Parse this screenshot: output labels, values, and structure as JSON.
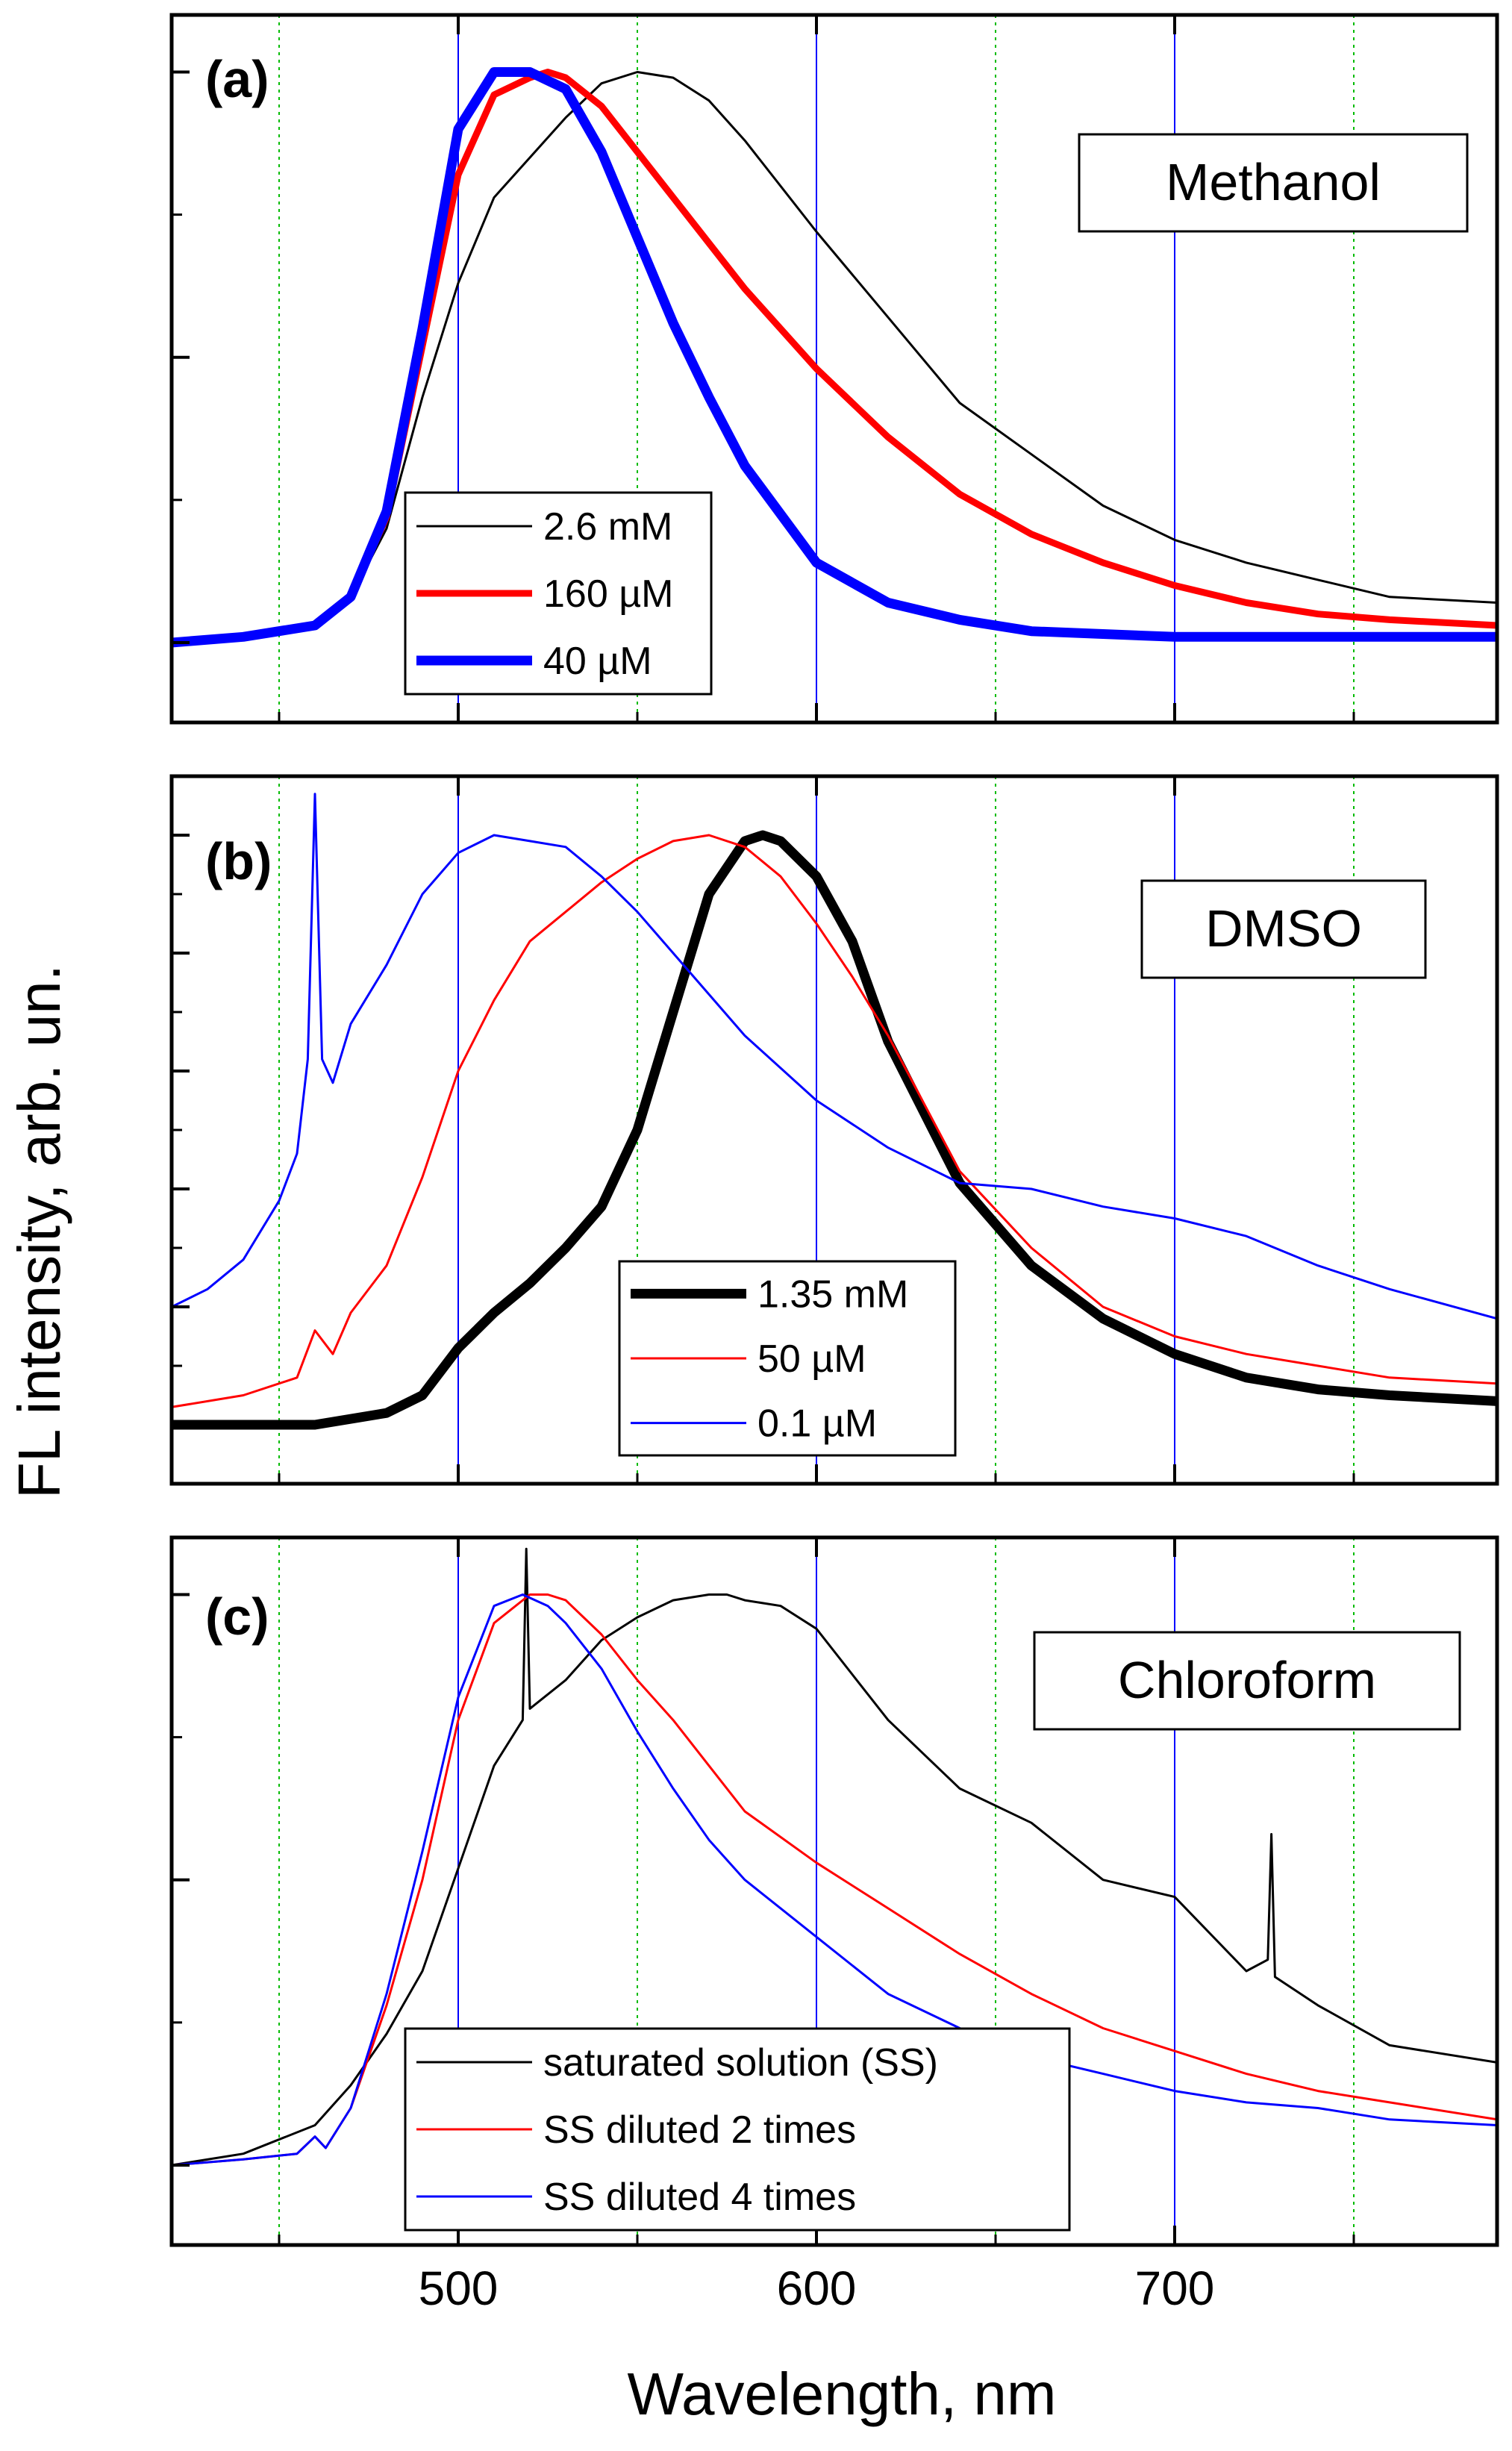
{
  "chart_data": [
    {
      "type": "line",
      "panel": "(a)",
      "solvent": "Methanol",
      "xlabel": "Wavelength, nm",
      "ylabel": "FL intensity, arb. un.",
      "xlim": [
        420,
        790
      ],
      "ylim": [
        -0.14,
        1.1
      ],
      "x_ticks": [
        500,
        600,
        700
      ],
      "x_minor_ticks": [
        450,
        550,
        650,
        750
      ],
      "grid": "vertical: blue at major ticks, green dotted at minor ticks",
      "legend_position": "bottom-left",
      "series": [
        {
          "name": "2.6 mM",
          "color": "#000000",
          "line_width": "thin",
          "x": [
            420,
            440,
            460,
            470,
            480,
            490,
            500,
            510,
            520,
            530,
            540,
            550,
            560,
            570,
            580,
            600,
            620,
            640,
            660,
            680,
            700,
            720,
            740,
            760,
            790
          ],
          "y": [
            0.0,
            0.01,
            0.03,
            0.08,
            0.2,
            0.43,
            0.63,
            0.78,
            0.85,
            0.92,
            0.98,
            1.0,
            0.99,
            0.95,
            0.88,
            0.72,
            0.57,
            0.42,
            0.33,
            0.24,
            0.18,
            0.14,
            0.11,
            0.08,
            0.07
          ]
        },
        {
          "name": "160 µM",
          "color": "#ff0000",
          "line_width": "medium",
          "x": [
            420,
            440,
            460,
            470,
            480,
            490,
            500,
            510,
            520,
            525,
            530,
            540,
            550,
            560,
            580,
            600,
            620,
            640,
            660,
            680,
            700,
            720,
            740,
            760,
            790
          ],
          "y": [
            0.0,
            0.01,
            0.03,
            0.08,
            0.22,
            0.52,
            0.82,
            0.96,
            0.99,
            1.0,
            0.99,
            0.94,
            0.86,
            0.78,
            0.62,
            0.48,
            0.36,
            0.26,
            0.19,
            0.14,
            0.1,
            0.07,
            0.05,
            0.04,
            0.03
          ]
        },
        {
          "name": "40 µM",
          "color": "#0000ff",
          "line_width": "thick",
          "x": [
            420,
            440,
            460,
            470,
            480,
            490,
            500,
            510,
            520,
            530,
            540,
            550,
            560,
            570,
            580,
            600,
            620,
            640,
            660,
            680,
            700,
            720,
            740,
            760,
            790
          ],
          "y": [
            0.0,
            0.01,
            0.03,
            0.08,
            0.23,
            0.55,
            0.9,
            1.0,
            1.0,
            0.97,
            0.86,
            0.71,
            0.56,
            0.43,
            0.31,
            0.14,
            0.07,
            0.04,
            0.02,
            0.015,
            0.01,
            0.01,
            0.01,
            0.01,
            0.01
          ]
        }
      ]
    },
    {
      "type": "line",
      "panel": "(b)",
      "solvent": "DMSO",
      "xlim": [
        420,
        790
      ],
      "ylim": [
        -0.1,
        1.1
      ],
      "x_ticks": [
        500,
        600,
        700
      ],
      "x_minor_ticks": [
        450,
        550,
        650,
        750
      ],
      "grid": "vertical: blue at major ticks, green dotted at minor ticks",
      "legend_position": "bottom-center",
      "series": [
        {
          "name": "1.35 mM",
          "color": "#000000",
          "line_width": "thick",
          "x": [
            420,
            440,
            460,
            480,
            490,
            500,
            510,
            520,
            530,
            540,
            550,
            560,
            570,
            580,
            585,
            590,
            600,
            610,
            620,
            640,
            660,
            680,
            700,
            720,
            740,
            760,
            790
          ],
          "y": [
            0.0,
            0.0,
            0.0,
            0.02,
            0.05,
            0.13,
            0.19,
            0.24,
            0.3,
            0.37,
            0.5,
            0.7,
            0.9,
            0.99,
            1.0,
            0.99,
            0.93,
            0.82,
            0.65,
            0.41,
            0.27,
            0.18,
            0.12,
            0.08,
            0.06,
            0.05,
            0.04
          ]
        },
        {
          "name": "50 µM",
          "color": "#ff0000",
          "line_width": "thin",
          "x": [
            420,
            440,
            455,
            460,
            465,
            470,
            480,
            490,
            500,
            510,
            520,
            530,
            540,
            550,
            560,
            570,
            580,
            590,
            600,
            610,
            620,
            640,
            660,
            680,
            700,
            720,
            740,
            760,
            790
          ],
          "y": [
            0.03,
            0.05,
            0.08,
            0.16,
            0.12,
            0.19,
            0.27,
            0.42,
            0.6,
            0.72,
            0.82,
            0.87,
            0.92,
            0.96,
            0.99,
            1.0,
            0.98,
            0.93,
            0.85,
            0.76,
            0.66,
            0.43,
            0.3,
            0.2,
            0.15,
            0.12,
            0.1,
            0.08,
            0.07
          ]
        },
        {
          "name": "0.1 µM",
          "color": "#0000ff",
          "line_width": "thin",
          "x": [
            420,
            430,
            440,
            450,
            455,
            458,
            460,
            462,
            465,
            470,
            480,
            490,
            500,
            510,
            520,
            530,
            540,
            550,
            560,
            580,
            600,
            620,
            640,
            660,
            680,
            700,
            720,
            740,
            760,
            790
          ],
          "y": [
            0.2,
            0.23,
            0.28,
            0.38,
            0.46,
            0.62,
            1.07,
            0.62,
            0.58,
            0.68,
            0.78,
            0.9,
            0.97,
            1.0,
            0.99,
            0.98,
            0.93,
            0.87,
            0.8,
            0.66,
            0.55,
            0.47,
            0.41,
            0.4,
            0.37,
            0.35,
            0.32,
            0.27,
            0.23,
            0.18
          ]
        }
      ]
    },
    {
      "type": "line",
      "panel": "(c)",
      "solvent": "Chloroform",
      "xlim": [
        420,
        790
      ],
      "ylim": [
        -0.14,
        1.1
      ],
      "x_ticks": [
        500,
        600,
        700
      ],
      "x_minor_ticks": [
        450,
        550,
        650,
        750
      ],
      "grid": "vertical: blue at major ticks, green dotted at minor ticks",
      "legend_position": "bottom-center",
      "series": [
        {
          "name": "saturated solution (SS)",
          "color": "#000000",
          "line_width": "thin",
          "x": [
            420,
            440,
            460,
            470,
            480,
            490,
            500,
            510,
            518,
            519,
            520,
            530,
            540,
            550,
            560,
            570,
            575,
            580,
            590,
            600,
            610,
            620,
            640,
            660,
            680,
            700,
            720,
            726,
            727,
            728,
            740,
            760,
            790
          ],
          "y": [
            0.0,
            0.02,
            0.07,
            0.14,
            0.23,
            0.34,
            0.52,
            0.7,
            0.78,
            1.08,
            0.8,
            0.85,
            0.92,
            0.96,
            0.99,
            1.0,
            1.0,
            0.99,
            0.98,
            0.94,
            0.86,
            0.78,
            0.66,
            0.6,
            0.5,
            0.47,
            0.34,
            0.36,
            0.58,
            0.33,
            0.28,
            0.21,
            0.18
          ]
        },
        {
          "name": "SS diluted 2 times",
          "color": "#ff0000",
          "line_width": "thin",
          "x": [
            420,
            440,
            455,
            460,
            463,
            470,
            480,
            490,
            500,
            510,
            520,
            525,
            530,
            540,
            550,
            560,
            570,
            580,
            600,
            620,
            640,
            660,
            680,
            700,
            720,
            740,
            760,
            790
          ],
          "y": [
            0.0,
            0.01,
            0.02,
            0.05,
            0.03,
            0.1,
            0.28,
            0.5,
            0.78,
            0.95,
            1.0,
            1.0,
            0.99,
            0.93,
            0.85,
            0.78,
            0.7,
            0.62,
            0.53,
            0.45,
            0.37,
            0.3,
            0.24,
            0.2,
            0.16,
            0.13,
            0.11,
            0.08
          ]
        },
        {
          "name": "SS diluted 4 times",
          "color": "#0000ff",
          "line_width": "thin",
          "x": [
            420,
            440,
            455,
            460,
            463,
            470,
            480,
            490,
            500,
            510,
            518,
            525,
            530,
            540,
            550,
            560,
            570,
            580,
            600,
            620,
            640,
            660,
            680,
            700,
            720,
            740,
            760,
            790
          ],
          "y": [
            0.0,
            0.01,
            0.02,
            0.05,
            0.03,
            0.1,
            0.3,
            0.55,
            0.82,
            0.98,
            1.0,
            0.98,
            0.95,
            0.87,
            0.76,
            0.66,
            0.57,
            0.5,
            0.4,
            0.3,
            0.24,
            0.19,
            0.16,
            0.13,
            0.11,
            0.1,
            0.08,
            0.07
          ]
        }
      ]
    }
  ]
}
